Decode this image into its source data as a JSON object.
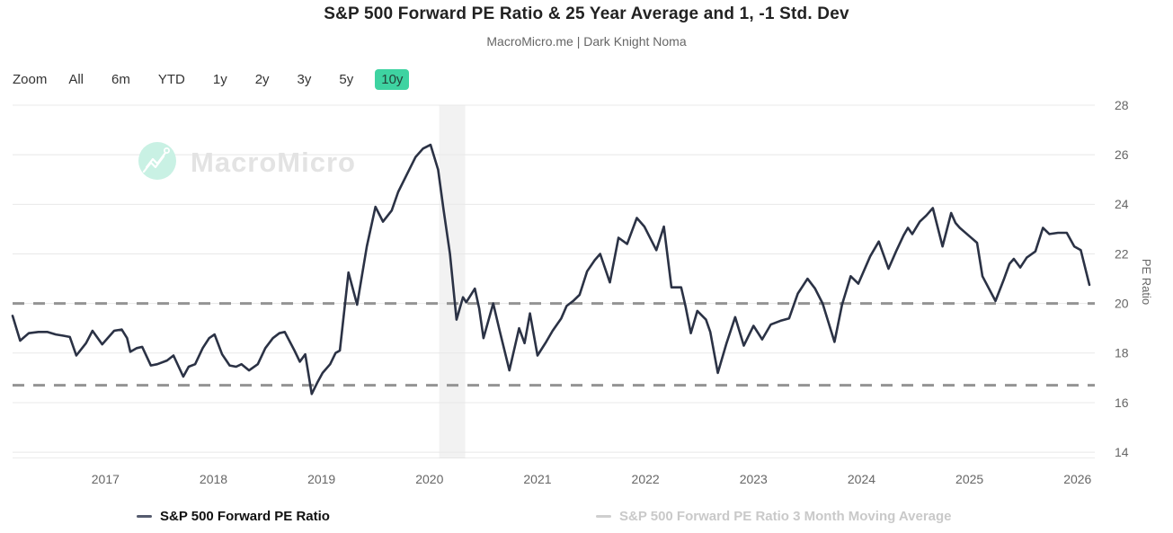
{
  "header": {
    "title": "S&P 500 Forward PE Ratio & 25 Year Average and 1, -1 Std. Dev",
    "subtitle": "MacroMicro.me | Dark Knight Noma"
  },
  "toolbar": {
    "zoom_label": "Zoom",
    "ranges": [
      "All",
      "6m",
      "YTD",
      "1y",
      "2y",
      "3y",
      "5y",
      "10y"
    ],
    "active": "10y"
  },
  "watermark": {
    "text": "MacroMicro"
  },
  "legend": [
    {
      "label": "S&P 500 Forward PE Ratio",
      "active": true
    },
    {
      "label": "S&P 500 Forward PE Ratio 3 Month Moving Average",
      "active": false
    }
  ],
  "colors": {
    "accent_teal": "#3ed3a1",
    "series_line": "#2b3245",
    "dashed_reference": "#949494",
    "gridline": "#e8e8e8",
    "axis_line": "#d9d9d9",
    "axis_label": "#666666",
    "plot_band": "#f2f2f2",
    "legend_marker": "#555b6e",
    "legend_disabled": "#cfcfcf",
    "watermark_circle": "#c9f1e4",
    "watermark_text": "#e3e3e3"
  },
  "chart_data": {
    "type": "line",
    "title": "S&P 500 Forward PE Ratio & 25 Year Average and 1, -1 Std. Dev",
    "xlabel": "",
    "ylabel": "PE Ratio",
    "ylim": [
      13.75,
      28
    ],
    "xlim": [
      2016.14,
      2026.16
    ],
    "y_ticks": [
      14,
      16,
      18,
      20,
      22,
      24,
      26,
      28
    ],
    "x_ticks": [
      2017,
      2018,
      2019,
      2020,
      2021,
      2022,
      2023,
      2024,
      2025,
      2026
    ],
    "grid": true,
    "legend_position": "bottom",
    "reference_lines": [
      {
        "name": "+1 std dev",
        "value": 20.0,
        "style": "dashed"
      },
      {
        "name": "-1 std dev",
        "value": 16.7,
        "style": "dashed"
      }
    ],
    "plot_band": {
      "from": 2020.09,
      "to": 2020.33
    },
    "series": [
      {
        "name": "S&P 500 Forward PE Ratio",
        "visible": true,
        "points": [
          [
            2016.14,
            19.5
          ],
          [
            2016.21,
            18.5
          ],
          [
            2016.29,
            18.8
          ],
          [
            2016.38,
            18.85
          ],
          [
            2016.46,
            18.85
          ],
          [
            2016.54,
            18.75
          ],
          [
            2016.61,
            18.7
          ],
          [
            2016.67,
            18.65
          ],
          [
            2016.73,
            17.9
          ],
          [
            2016.82,
            18.4
          ],
          [
            2016.88,
            18.9
          ],
          [
            2016.97,
            18.35
          ],
          [
            2017.08,
            18.9
          ],
          [
            2017.15,
            18.95
          ],
          [
            2017.2,
            18.6
          ],
          [
            2017.23,
            18.05
          ],
          [
            2017.29,
            18.2
          ],
          [
            2017.34,
            18.25
          ],
          [
            2017.42,
            17.5
          ],
          [
            2017.48,
            17.55
          ],
          [
            2017.57,
            17.7
          ],
          [
            2017.63,
            17.9
          ],
          [
            2017.72,
            17.05
          ],
          [
            2017.77,
            17.45
          ],
          [
            2017.83,
            17.55
          ],
          [
            2017.9,
            18.2
          ],
          [
            2017.96,
            18.6
          ],
          [
            2018.01,
            18.75
          ],
          [
            2018.08,
            17.95
          ],
          [
            2018.15,
            17.5
          ],
          [
            2018.21,
            17.45
          ],
          [
            2018.26,
            17.55
          ],
          [
            2018.33,
            17.3
          ],
          [
            2018.41,
            17.55
          ],
          [
            2018.48,
            18.2
          ],
          [
            2018.55,
            18.6
          ],
          [
            2018.61,
            18.8
          ],
          [
            2018.66,
            18.85
          ],
          [
            2018.75,
            18.1
          ],
          [
            2018.8,
            17.65
          ],
          [
            2018.85,
            17.95
          ],
          [
            2018.91,
            16.35
          ],
          [
            2018.96,
            16.8
          ],
          [
            2019.01,
            17.2
          ],
          [
            2019.08,
            17.55
          ],
          [
            2019.13,
            18.0
          ],
          [
            2019.17,
            18.1
          ],
          [
            2019.25,
            21.25
          ],
          [
            2019.33,
            19.95
          ],
          [
            2019.42,
            22.3
          ],
          [
            2019.5,
            23.9
          ],
          [
            2019.57,
            23.3
          ],
          [
            2019.65,
            23.75
          ],
          [
            2019.71,
            24.5
          ],
          [
            2019.79,
            25.2
          ],
          [
            2019.87,
            25.9
          ],
          [
            2019.94,
            26.25
          ],
          [
            2020.01,
            26.4
          ],
          [
            2020.08,
            25.4
          ],
          [
            2020.13,
            23.8
          ],
          [
            2020.19,
            22.0
          ],
          [
            2020.25,
            19.35
          ],
          [
            2020.31,
            20.25
          ],
          [
            2020.34,
            20.05
          ],
          [
            2020.42,
            20.6
          ],
          [
            2020.46,
            19.8
          ],
          [
            2020.5,
            18.6
          ],
          [
            2020.59,
            20.0
          ],
          [
            2020.65,
            18.9
          ],
          [
            2020.74,
            17.3
          ],
          [
            2020.83,
            19.0
          ],
          [
            2020.88,
            18.4
          ],
          [
            2020.93,
            19.6
          ],
          [
            2021.0,
            17.9
          ],
          [
            2021.08,
            18.45
          ],
          [
            2021.14,
            18.9
          ],
          [
            2021.22,
            19.4
          ],
          [
            2021.27,
            19.9
          ],
          [
            2021.33,
            20.1
          ],
          [
            2021.39,
            20.35
          ],
          [
            2021.46,
            21.3
          ],
          [
            2021.53,
            21.75
          ],
          [
            2021.58,
            22.0
          ],
          [
            2021.67,
            20.85
          ],
          [
            2021.75,
            22.65
          ],
          [
            2021.83,
            22.4
          ],
          [
            2021.92,
            23.45
          ],
          [
            2021.99,
            23.1
          ],
          [
            2022.1,
            22.15
          ],
          [
            2022.17,
            23.1
          ],
          [
            2022.24,
            20.65
          ],
          [
            2022.33,
            20.65
          ],
          [
            2022.37,
            19.9
          ],
          [
            2022.42,
            18.8
          ],
          [
            2022.48,
            19.7
          ],
          [
            2022.56,
            19.35
          ],
          [
            2022.6,
            18.85
          ],
          [
            2022.67,
            17.2
          ],
          [
            2022.75,
            18.4
          ],
          [
            2022.83,
            19.45
          ],
          [
            2022.91,
            18.3
          ],
          [
            2023.0,
            19.1
          ],
          [
            2023.08,
            18.55
          ],
          [
            2023.16,
            19.15
          ],
          [
            2023.25,
            19.3
          ],
          [
            2023.33,
            19.4
          ],
          [
            2023.41,
            20.4
          ],
          [
            2023.5,
            21.0
          ],
          [
            2023.57,
            20.6
          ],
          [
            2023.64,
            20.0
          ],
          [
            2023.75,
            18.45
          ],
          [
            2023.82,
            19.95
          ],
          [
            2023.9,
            21.1
          ],
          [
            2023.97,
            20.8
          ],
          [
            2024.08,
            21.9
          ],
          [
            2024.16,
            22.5
          ],
          [
            2024.25,
            21.4
          ],
          [
            2024.32,
            22.1
          ],
          [
            2024.39,
            22.75
          ],
          [
            2024.43,
            23.05
          ],
          [
            2024.47,
            22.8
          ],
          [
            2024.54,
            23.3
          ],
          [
            2024.6,
            23.55
          ],
          [
            2024.66,
            23.85
          ],
          [
            2024.75,
            22.3
          ],
          [
            2024.83,
            23.65
          ],
          [
            2024.87,
            23.25
          ],
          [
            2024.91,
            23.05
          ],
          [
            2024.99,
            22.75
          ],
          [
            2025.07,
            22.45
          ],
          [
            2025.12,
            21.1
          ],
          [
            2025.24,
            20.1
          ],
          [
            2025.32,
            21.0
          ],
          [
            2025.37,
            21.6
          ],
          [
            2025.41,
            21.8
          ],
          [
            2025.47,
            21.45
          ],
          [
            2025.53,
            21.85
          ],
          [
            2025.61,
            22.1
          ],
          [
            2025.68,
            23.05
          ],
          [
            2025.74,
            22.8
          ],
          [
            2025.82,
            22.85
          ],
          [
            2025.9,
            22.85
          ],
          [
            2025.97,
            22.3
          ],
          [
            2026.03,
            22.15
          ],
          [
            2026.11,
            20.75
          ]
        ]
      },
      {
        "name": "S&P 500 Forward PE Ratio 3 Month Moving Average",
        "visible": false,
        "points": []
      }
    ]
  }
}
